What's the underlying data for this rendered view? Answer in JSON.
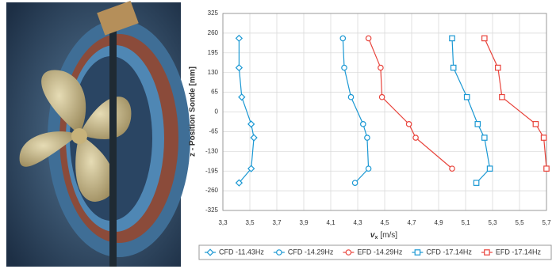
{
  "chart_data": {
    "type": "line",
    "y_label": "z - Position Sonde [mm]",
    "x_label": {
      "symbol": "v",
      "subscript": "x",
      "unit": "[m/s]"
    },
    "xlim": [
      3.3,
      5.7
    ],
    "xticks": [
      {
        "value": 3.3,
        "label": "3,3"
      },
      {
        "value": 3.5,
        "label": "3,5"
      },
      {
        "value": 3.7,
        "label": "3,7"
      },
      {
        "value": 3.9,
        "label": "3,9"
      },
      {
        "value": 4.1,
        "label": "4,1"
      },
      {
        "value": 4.3,
        "label": "4,3"
      },
      {
        "value": 4.5,
        "label": "4,5"
      },
      {
        "value": 4.7,
        "label": "4,7"
      },
      {
        "value": 4.9,
        "label": "4,9"
      },
      {
        "value": 5.1,
        "label": "5,1"
      },
      {
        "value": 5.3,
        "label": "5,3"
      },
      {
        "value": 5.5,
        "label": "5,5"
      },
      {
        "value": 5.7,
        "label": "5,7"
      }
    ],
    "ylim": [
      -325,
      325
    ],
    "yticks": [
      325,
      260,
      195,
      130,
      65,
      0,
      -65,
      -130,
      -195,
      -260,
      -325
    ],
    "grid": true,
    "legend": "bottom",
    "series": [
      {
        "name": "CFD -11.43Hz",
        "color": "#1b98d3",
        "marker": "diamond",
        "x": [
          3.42,
          3.42,
          3.44,
          3.51,
          3.53,
          3.51,
          3.42
        ],
        "y": [
          243,
          146,
          49,
          -40,
          -85,
          -187,
          -234
        ]
      },
      {
        "name": "CFD -14.29Hz",
        "color": "#1b98d3",
        "marker": "circle",
        "x": [
          4.19,
          4.2,
          4.25,
          4.34,
          4.37,
          4.38,
          4.28
        ],
        "y": [
          243,
          146,
          49,
          -40,
          -85,
          -187,
          -234
        ]
      },
      {
        "name": "EFD -14.29Hz",
        "color": "#e8443c",
        "marker": "circle",
        "x": [
          4.38,
          4.47,
          4.48,
          4.68,
          4.73,
          5.0
        ],
        "y": [
          243,
          146,
          49,
          -40,
          -85,
          -187
        ]
      },
      {
        "name": "CFD -17.14Hz",
        "color": "#1b98d3",
        "marker": "square",
        "x": [
          5.0,
          5.01,
          5.11,
          5.19,
          5.24,
          5.28,
          5.18
        ],
        "y": [
          243,
          146,
          49,
          -40,
          -85,
          -187,
          -234
        ]
      },
      {
        "name": "EFD -17.14Hz",
        "color": "#e8443c",
        "marker": "square",
        "x": [
          5.24,
          5.34,
          5.37,
          5.62,
          5.68,
          5.7
        ],
        "y": [
          243,
          146,
          49,
          -40,
          -85,
          -187
        ]
      }
    ]
  }
}
